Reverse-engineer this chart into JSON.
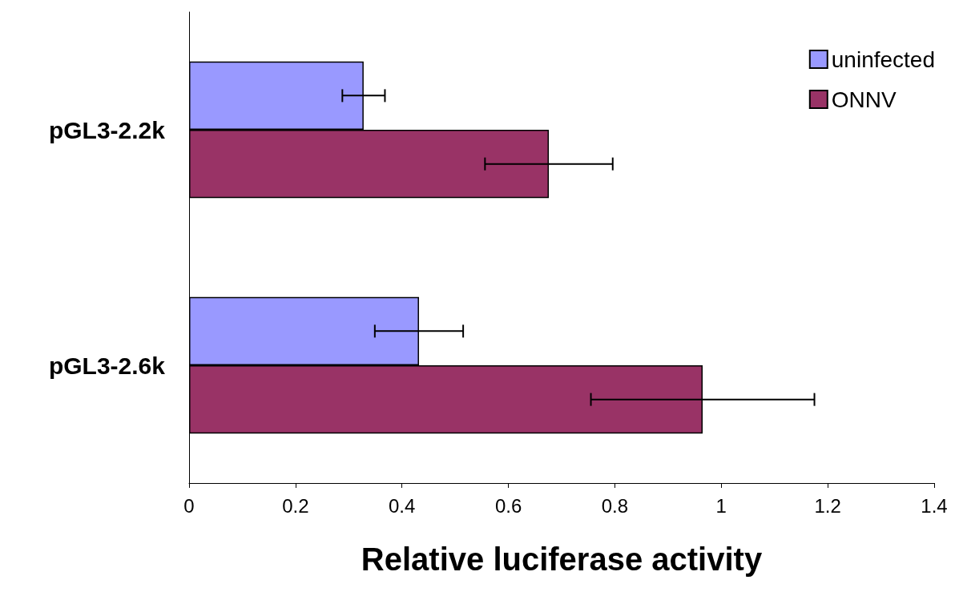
{
  "chart_data": {
    "type": "bar",
    "orientation": "horizontal",
    "xlabel": "Relative luciferase activity",
    "categories": [
      "pGL3-2.2k",
      "pGL3-2.6k"
    ],
    "series": [
      {
        "name": "uninfected",
        "color": "#9999ff",
        "values": [
          0.328,
          0.432
        ],
        "errors": [
          0.04,
          0.083
        ]
      },
      {
        "name": "ONNV",
        "color": "#993366",
        "values": [
          0.676,
          0.965
        ],
        "errors": [
          0.12,
          0.21
        ]
      }
    ],
    "xlim": [
      0,
      1.4
    ],
    "xticks": [
      0,
      0.2,
      0.4,
      0.6,
      0.8,
      1,
      1.2,
      1.4
    ],
    "grid": false,
    "legend": "top right"
  }
}
